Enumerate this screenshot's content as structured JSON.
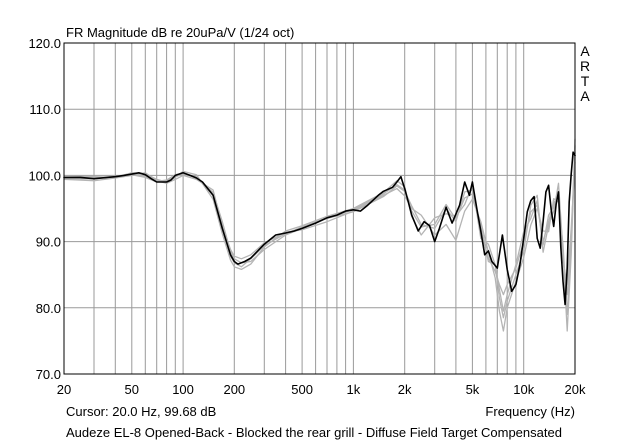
{
  "chart_data": {
    "type": "line",
    "title": "FR Magnitude dB re 20uPa/V (1/24 oct)",
    "xlabel": "Frequency (Hz)",
    "ylabel": "",
    "x_scale": "log",
    "xlim": [
      20,
      20000
    ],
    "ylim": [
      70,
      120
    ],
    "grid": true,
    "legend": "none",
    "x_ticks": [
      {
        "value": 20,
        "label": "20"
      },
      {
        "value": 50,
        "label": "50"
      },
      {
        "value": 100,
        "label": "100"
      },
      {
        "value": 200,
        "label": "200"
      },
      {
        "value": 500,
        "label": "500"
      },
      {
        "value": 1000,
        "label": "1k"
      },
      {
        "value": 2000,
        "label": "2k"
      },
      {
        "value": 5000,
        "label": "5k"
      },
      {
        "value": 10000,
        "label": "10k"
      },
      {
        "value": 20000,
        "label": "20k"
      }
    ],
    "y_ticks": [
      {
        "value": 70,
        "label": "70.0"
      },
      {
        "value": 80,
        "label": "80.0"
      },
      {
        "value": 90,
        "label": "90.0"
      },
      {
        "value": 100,
        "label": "100.0"
      },
      {
        "value": 110,
        "label": "110.0"
      },
      {
        "value": 120,
        "label": "120.0"
      }
    ],
    "series": [
      {
        "color": "#000000",
        "x": [
          20,
          25,
          30,
          40,
          45,
          50,
          55,
          60,
          65,
          70,
          80,
          85,
          90,
          100,
          110,
          120,
          130,
          150,
          170,
          190,
          200,
          210,
          230,
          250,
          300,
          350,
          400,
          450,
          500,
          600,
          700,
          800,
          900,
          1000,
          1100,
          1200,
          1400,
          1500,
          1700,
          1800,
          1900,
          2000,
          2100,
          2200,
          2400,
          2600,
          2800,
          3000,
          3200,
          3500,
          3800,
          4200,
          4500,
          4800,
          5000,
          5300,
          5600,
          5900,
          6200,
          6500,
          7000,
          7500,
          8000,
          8500,
          9000,
          9500,
          10000,
          10500,
          11000,
          11500,
          12000,
          12500,
          13000,
          13500,
          14000,
          14500,
          15000,
          15500,
          16000,
          16500,
          17000,
          17500,
          18000,
          18500,
          19000,
          19500,
          20000
        ],
        "y": [
          99.68,
          99.7,
          99.5,
          99.8,
          100,
          100.2,
          100.4,
          100.1,
          99.5,
          99,
          99,
          99.3,
          100,
          100.4,
          100,
          99.6,
          99,
          97,
          92,
          88,
          87,
          86.6,
          87,
          87.5,
          89.6,
          91,
          91.3,
          91.6,
          92,
          92.8,
          93.6,
          94,
          94.6,
          94.8,
          94.6,
          95.4,
          97,
          97.6,
          98.2,
          99,
          99.8,
          98,
          96,
          94,
          91.6,
          93,
          92.4,
          90,
          92,
          95.2,
          92.8,
          95.5,
          99,
          97,
          99,
          95,
          91.6,
          88,
          88.6,
          87,
          86,
          91,
          85.8,
          82.5,
          83.5,
          86.5,
          90.5,
          94.5,
          96.2,
          96.8,
          90.5,
          89,
          93,
          97.5,
          98.5,
          94.8,
          92.3,
          95.6,
          97.5,
          89.2,
          84,
          80.5,
          86,
          96,
          100.2,
          103.5,
          103
        ]
      },
      {
        "color": "#b4b4b4",
        "x": [
          20,
          30,
          40,
          50,
          60,
          70,
          80,
          90,
          100,
          120,
          150,
          170,
          190,
          200,
          220,
          250,
          300,
          400,
          500,
          700,
          1000,
          1500,
          1800,
          2000,
          2200,
          2500,
          3000,
          3500,
          4000,
          4500,
          5000,
          5600,
          6200,
          6800,
          7200,
          7600,
          8000,
          9000,
          10000,
          11000,
          12000,
          13000,
          14000,
          15000,
          16000,
          17000,
          18000,
          19000,
          20000
        ],
        "y": [
          99.5,
          99.5,
          99.8,
          100.1,
          99.7,
          99,
          99.2,
          99.8,
          100.2,
          99.7,
          97.4,
          93,
          88.5,
          87.4,
          86.8,
          87,
          88.8,
          91,
          92,
          93.5,
          94.5,
          96.8,
          98.4,
          97.6,
          95.4,
          92.6,
          92,
          95,
          93,
          97.5,
          97.8,
          91.5,
          87.5,
          85.5,
          83.5,
          82,
          83.5,
          86,
          90,
          94.5,
          95.5,
          90,
          93,
          95.8,
          97,
          87,
          83.5,
          92,
          102
        ]
      },
      {
        "color": "#b4b4b4",
        "x": [
          20,
          30,
          40,
          50,
          60,
          70,
          80,
          90,
          100,
          120,
          150,
          170,
          190,
          200,
          220,
          250,
          300,
          400,
          500,
          700,
          1000,
          1500,
          1800,
          2000,
          2200,
          2500,
          3000,
          3500,
          4000,
          4500,
          5000,
          5600,
          6200,
          6800,
          7200,
          7600,
          8000,
          9000,
          10000,
          11000,
          12000,
          13000,
          14000,
          15000,
          16000,
          17000,
          18000,
          19000,
          20000
        ],
        "y": [
          99.9,
          99.8,
          99.7,
          100.4,
          100.3,
          99.4,
          99,
          99.7,
          100.6,
          100.1,
          96.4,
          91.2,
          87.2,
          86.2,
          85.8,
          86.6,
          89.2,
          91.6,
          92.4,
          93.8,
          95,
          97.4,
          99.2,
          98.3,
          93.8,
          91,
          93.6,
          94.2,
          93.8,
          95.6,
          98.5,
          90.5,
          89.6,
          86.5,
          81.5,
          78.5,
          81,
          85,
          88.6,
          95.5,
          97,
          88.4,
          92.5,
          94.6,
          98.8,
          88.5,
          76.5,
          88,
          104.5
        ]
      },
      {
        "color": "#b4b4b4",
        "x": [
          20,
          30,
          40,
          50,
          60,
          70,
          80,
          90,
          100,
          120,
          150,
          170,
          190,
          200,
          220,
          250,
          300,
          400,
          500,
          700,
          1000,
          1500,
          1800,
          2000,
          2200,
          2500,
          3000,
          3500,
          4000,
          4500,
          5000,
          5600,
          6200,
          6800,
          7200,
          7600,
          8000,
          9000,
          10000,
          11000,
          12000,
          13000,
          14000,
          15000,
          16000,
          17000,
          18000,
          19000,
          20000
        ],
        "y": [
          99.4,
          99.2,
          99.6,
          100,
          100.4,
          99.2,
          98.8,
          99.4,
          100,
          99.4,
          97.8,
          92.4,
          88.8,
          87.8,
          87.4,
          88,
          89.8,
          91.4,
          91.8,
          93,
          94.6,
          97,
          98,
          96.9,
          95,
          94,
          91,
          92.6,
          90.2,
          94.6,
          96.4,
          93,
          88.4,
          84.5,
          79.5,
          76.5,
          80,
          84,
          87.6,
          92.5,
          95,
          91.6,
          91.5,
          96.5,
          96,
          89.5,
          79,
          89.5,
          105.5
        ]
      },
      {
        "color": "#b4b4b4",
        "x": [
          20,
          30,
          40,
          50,
          60,
          70,
          80,
          90,
          100,
          120,
          150,
          170,
          190,
          200,
          220,
          250,
          300,
          400,
          500,
          700,
          1000,
          1500,
          1800,
          2000,
          2200,
          2500,
          3000,
          3500,
          4000,
          4500,
          5000,
          5600,
          6200,
          6800,
          7200,
          7600,
          8000,
          9000,
          10000,
          11000,
          12000,
          13000,
          14000,
          15000,
          16000,
          17000,
          18000,
          19000,
          20000
        ],
        "y": [
          99.7,
          99.6,
          99.9,
          100.2,
          99.9,
          99.1,
          99.3,
          100.1,
          100.3,
          99.8,
          97,
          92,
          87.8,
          86.8,
          86.2,
          87.4,
          89.4,
          91.2,
          92.2,
          93.6,
          94.8,
          97.2,
          98.6,
          97.8,
          94.6,
          92.2,
          92.6,
          95.6,
          93.4,
          96.6,
          97.2,
          92.4,
          87,
          86.5,
          82.8,
          79.5,
          82,
          86.5,
          91.5,
          93.5,
          96.2,
          89.5,
          94,
          95.2,
          97.6,
          87.5,
          82,
          90.5,
          103.5
        ]
      }
    ],
    "cursor_text": "Cursor: 20.0 Hz, 99.68 dB",
    "caption": "Audeze EL-8 Opened-Back - Blocked the rear grill - Diffuse Field Target Compensated",
    "brand_letters": [
      "A",
      "R",
      "T",
      "A"
    ]
  }
}
